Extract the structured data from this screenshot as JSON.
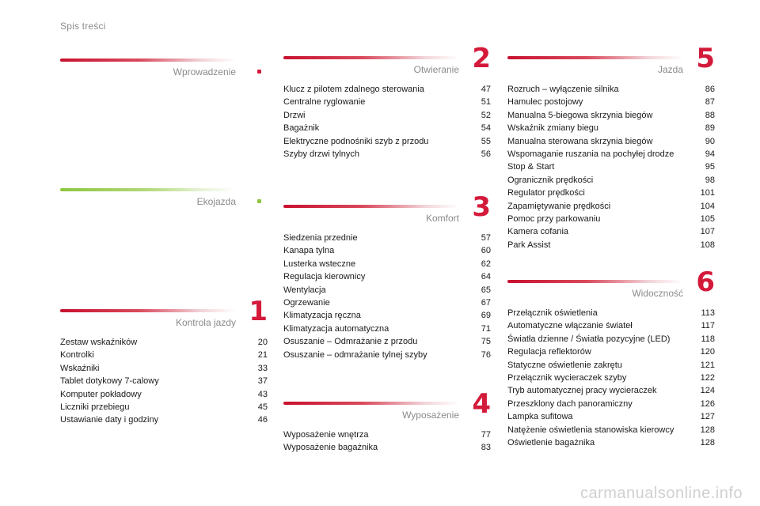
{
  "page_title": "Spis treści",
  "colors": {
    "red": "#d41a3a",
    "green": "#8cc63f",
    "grey_text": "#8a8a8a"
  },
  "sections": {
    "wprowadzenie": {
      "title": "Wprowadzenie",
      "number": "",
      "items": []
    },
    "ekojazda": {
      "title": "Ekojazda",
      "number": "",
      "items": []
    },
    "kontrola_jazdy": {
      "title": "Kontrola jazdy",
      "number": "1",
      "items": [
        {
          "label": "Zestaw wskaźników",
          "page": "20"
        },
        {
          "label": "Kontrolki",
          "page": "21"
        },
        {
          "label": "Wskaźniki",
          "page": "33"
        },
        {
          "label": "Tablet dotykowy 7-calowy",
          "page": "37"
        },
        {
          "label": "Komputer pokładowy",
          "page": "43"
        },
        {
          "label": "Liczniki przebiegu",
          "page": "45"
        },
        {
          "label": "Ustawianie daty i godziny",
          "page": "46"
        }
      ]
    },
    "otwieranie": {
      "title": "Otwieranie",
      "number": "2",
      "items": [
        {
          "label": "Klucz z pilotem zdalnego sterowania",
          "page": "47"
        },
        {
          "label": "Centralne ryglowanie",
          "page": "51"
        },
        {
          "label": "Drzwi",
          "page": "52"
        },
        {
          "label": "Bagażnik",
          "page": "54"
        },
        {
          "label": "Elektryczne podnośniki szyb z przodu",
          "page": "55"
        },
        {
          "label": "Szyby drzwi tylnych",
          "page": "56"
        }
      ]
    },
    "komfort": {
      "title": "Komfort",
      "number": "3",
      "items": [
        {
          "label": "Siedzenia przednie",
          "page": "57"
        },
        {
          "label": "Kanapa tylna",
          "page": "60"
        },
        {
          "label": "Lusterka wsteczne",
          "page": "62"
        },
        {
          "label": "Regulacja kierownicy",
          "page": "64"
        },
        {
          "label": "Wentylacja",
          "page": "65"
        },
        {
          "label": "Ogrzewanie",
          "page": "67"
        },
        {
          "label": "Klimatyzacja ręczna",
          "page": "69"
        },
        {
          "label": "Klimatyzacja automatyczna",
          "page": "71"
        },
        {
          "label": "Osuszanie – Odmrażanie z przodu",
          "page": "75"
        },
        {
          "label": "Osuszanie – odmrażanie tylnej szyby",
          "page": "76"
        }
      ]
    },
    "wyposazenie": {
      "title": "Wyposażenie",
      "number": "4",
      "items": [
        {
          "label": "Wyposażenie wnętrza",
          "page": "77"
        },
        {
          "label": "Wyposażenie bagażnika",
          "page": "83"
        }
      ]
    },
    "jazda": {
      "title": "Jazda",
      "number": "5",
      "items": [
        {
          "label": "Rozruch – wyłączenie silnika",
          "page": "86"
        },
        {
          "label": "Hamulec postojowy",
          "page": "87"
        },
        {
          "label": "Manualna 5-biegowa skrzynia biegów",
          "page": "88"
        },
        {
          "label": "Wskaźnik zmiany biegu",
          "page": "89"
        },
        {
          "label": "Manualna sterowana skrzynia biegów",
          "page": "90"
        },
        {
          "label": "Wspomaganie ruszania na pochyłej drodze",
          "page": "94"
        },
        {
          "label": "Stop & Start",
          "page": "95"
        },
        {
          "label": "Ogranicznik prędkości",
          "page": "98"
        },
        {
          "label": "Regulator prędkości",
          "page": "101"
        },
        {
          "label": "Zapamiętywanie prędkości",
          "page": "104"
        },
        {
          "label": "Pomoc przy parkowaniu",
          "page": "105"
        },
        {
          "label": "Kamera cofania",
          "page": "107"
        },
        {
          "label": "Park Assist",
          "page": "108"
        }
      ]
    },
    "widocznosc": {
      "title": "Widoczność",
      "number": "6",
      "items": [
        {
          "label": "Przełącznik oświetlenia",
          "page": "113"
        },
        {
          "label": "Automatyczne włączanie świateł",
          "page": "117"
        },
        {
          "label": "Światła dzienne / Światła pozycyjne (LED)",
          "page": "118"
        },
        {
          "label": "Regulacja reflektorów",
          "page": "120"
        },
        {
          "label": "Statyczne oświetlenie zakrętu",
          "page": "121"
        },
        {
          "label": "Przełącznik wycieraczek szyby",
          "page": "122"
        },
        {
          "label": "Tryb automatycznej pracy wycieraczek",
          "page": "124"
        },
        {
          "label": "Przeszklony dach panoramiczny",
          "page": "126"
        },
        {
          "label": "Lampka sufitowa",
          "page": "127"
        },
        {
          "label": "Natężenie oświetlenia stanowiska kierowcy",
          "page": "128"
        },
        {
          "label": "Oświetlenie bagażnika",
          "page": "128"
        }
      ]
    }
  },
  "watermark": "carmanualsonline.info"
}
